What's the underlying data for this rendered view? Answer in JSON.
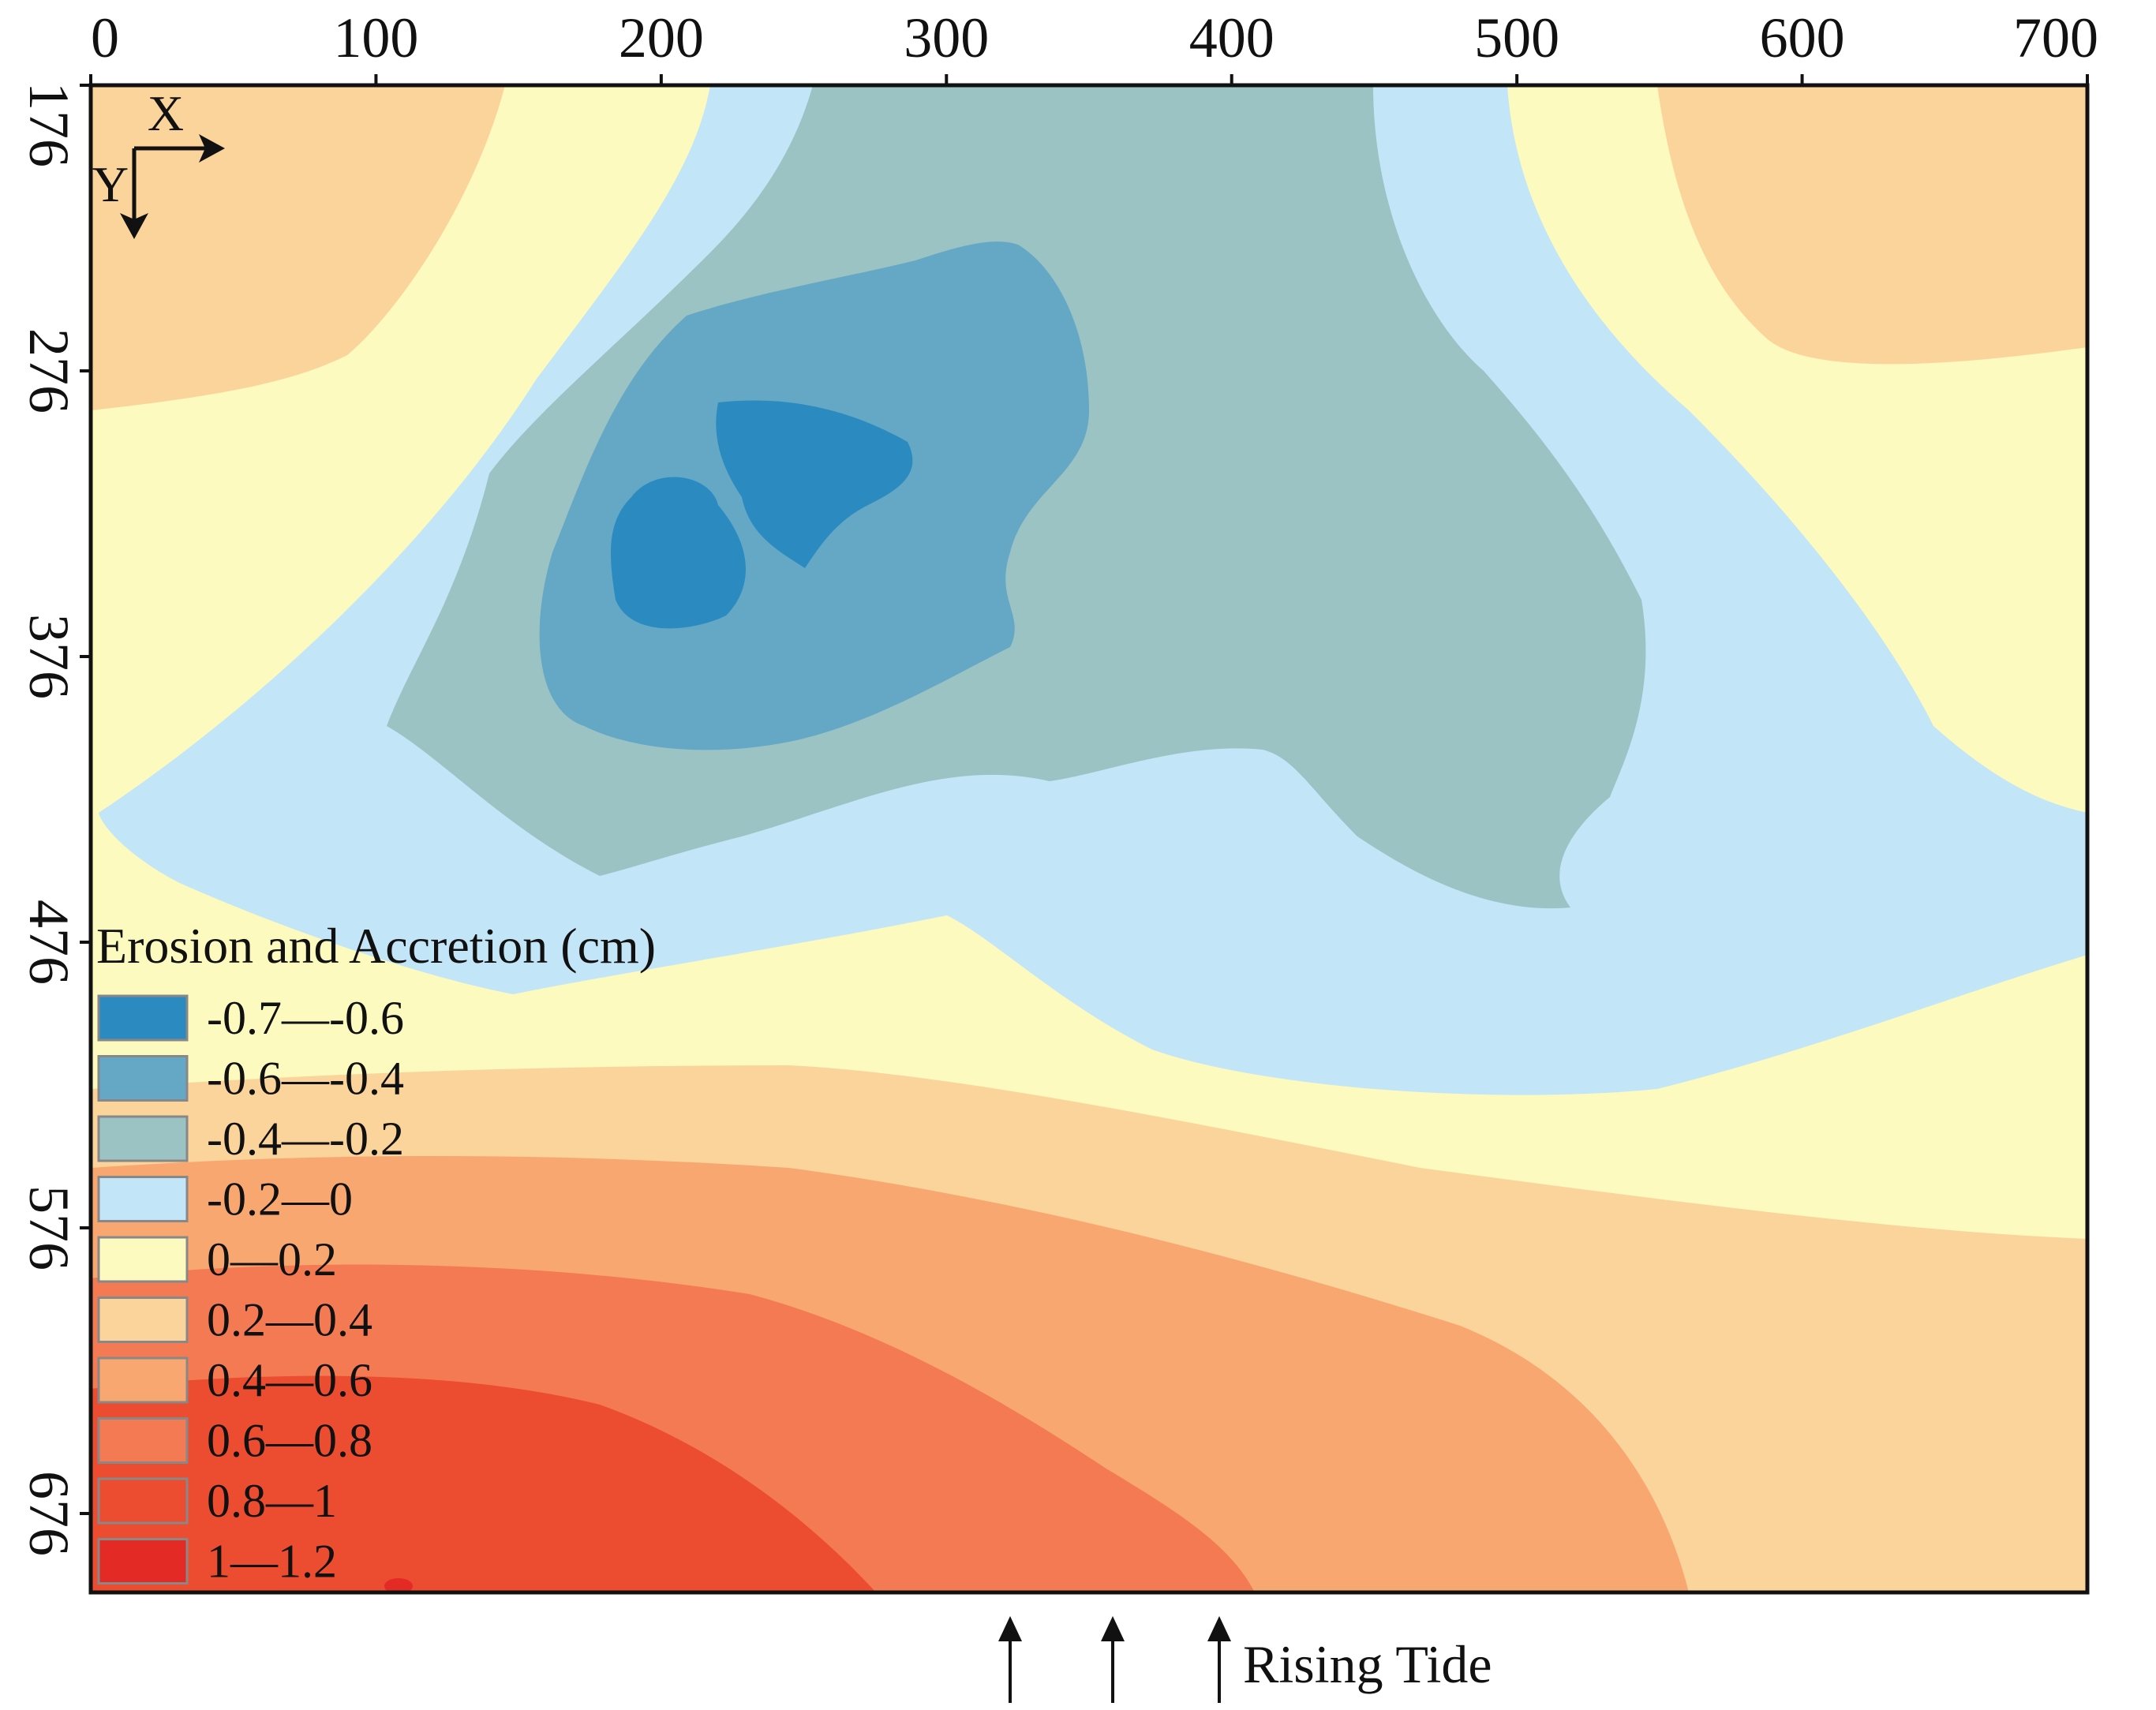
{
  "map": {
    "x_ticks": [
      "0",
      "100",
      "200",
      "300",
      "400",
      "500",
      "600",
      "700"
    ],
    "y_ticks": [
      "176",
      "276",
      "376",
      "476",
      "576",
      "676"
    ],
    "orientation": {
      "x_label": "X",
      "y_label": "Y"
    },
    "colors": {
      "zone_0": "#2b8bc0",
      "zone_1": "#64a8c5",
      "zone_2": "#9cc3c3",
      "zone_3": "#c3e5f8",
      "zone_4": "#fcfabe",
      "zone_5": "#fbd49c",
      "zone_6": "#f8a771",
      "zone_7": "#f37a52",
      "zone_8": "#ec4d30",
      "zone_9": "#e32a25"
    },
    "legend": {
      "title": "Erosion and Accretion (cm)",
      "items": [
        {
          "label": "-0.7—-0.6",
          "color": "#2b8bc0"
        },
        {
          "label": "-0.6—-0.4",
          "color": "#64a8c5"
        },
        {
          "label": "-0.4—-0.2",
          "color": "#9cc3c3"
        },
        {
          "label": "-0.2—0",
          "color": "#c3e5f8"
        },
        {
          "label": " 0—0.2",
          "color": "#fcfabe"
        },
        {
          "label": " 0.2—0.4",
          "color": "#fbd49c"
        },
        {
          "label": " 0.4—0.6",
          "color": "#f8a771"
        },
        {
          "label": " 0.6—0.8",
          "color": "#f37a52"
        },
        {
          "label": " 0.8—1",
          "color": "#ec4d30"
        },
        {
          "label": " 1—1.2",
          "color": "#e32a25"
        }
      ]
    },
    "annotation": {
      "label": "Rising Tide"
    }
  }
}
